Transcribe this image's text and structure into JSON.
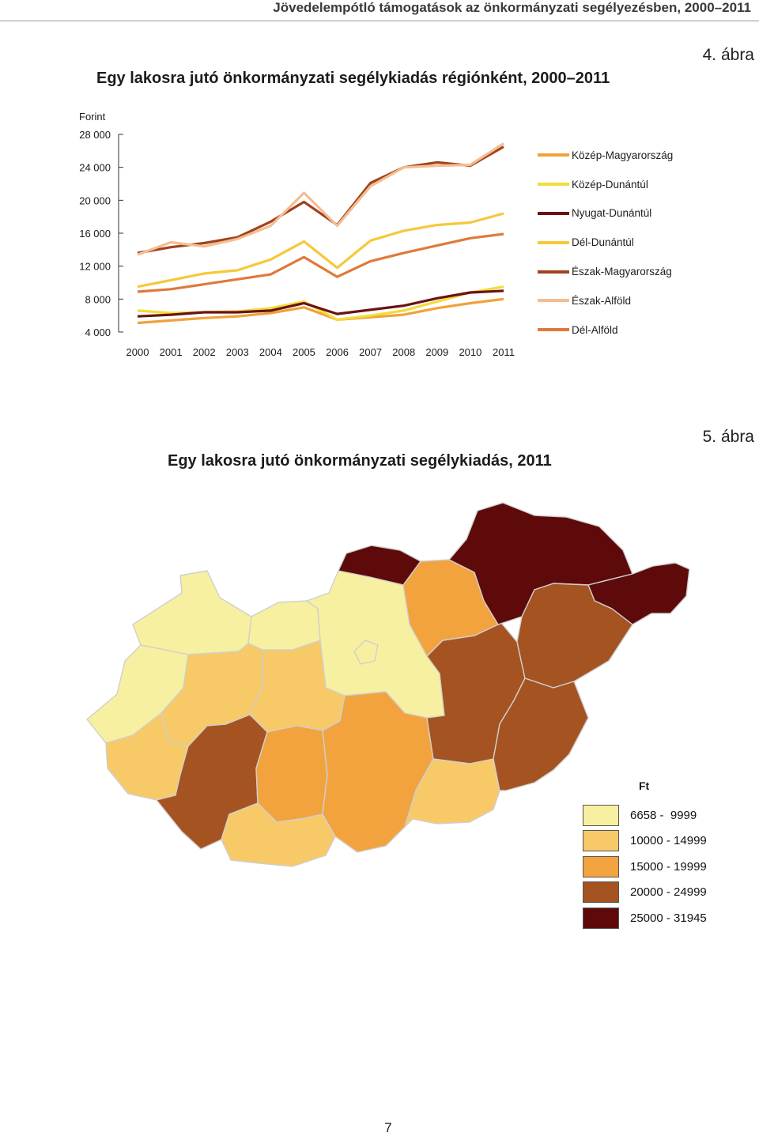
{
  "running_header": "Jövedelempótló támogatások az önkormányzati segélyezésben, 2000–2011",
  "figure4": {
    "number": "4. ábra",
    "title": "Egy lakosra jutó önkormányzati segélykiadás régiónként, 2000–2011"
  },
  "figure5": {
    "number": "5. ábra",
    "title": "Egy lakosra jutó önkormányzati segélykiadás, 2011"
  },
  "chart_data": {
    "type": "line",
    "title": "Egy lakosra jutó önkormányzati segélykiadás régiónként, 2000–2011",
    "ylabel": "Forint",
    "xlabel": "",
    "x": [
      "2000",
      "2001",
      "2002",
      "2003",
      "2004",
      "2005",
      "2006",
      "2007",
      "2008",
      "2009",
      "2010",
      "2011"
    ],
    "y_ticks": [
      4000,
      8000,
      12000,
      16000,
      20000,
      24000,
      28000
    ],
    "y_tick_labels": [
      "4 000",
      "8 000",
      "12 000",
      "16 000",
      "20 000",
      "24 000",
      "28 000"
    ],
    "ylim": [
      4000,
      28000
    ],
    "grid": false,
    "legend_position": "right",
    "series": [
      {
        "name": "Közép-Magyarország",
        "color": "#f0a23a",
        "values": [
          5100,
          5400,
          5700,
          5900,
          6300,
          7000,
          5500,
          5800,
          6100,
          6900,
          7500,
          8000
        ]
      },
      {
        "name": "Közép-Dunántúl",
        "color": "#f2dc3a",
        "values": [
          6600,
          6300,
          6400,
          6500,
          6900,
          7700,
          5500,
          6000,
          6600,
          7700,
          8800,
          9500
        ]
      },
      {
        "name": "Nyugat-Dunántúl",
        "color": "#6b1212",
        "values": [
          5900,
          6100,
          6400,
          6400,
          6600,
          7500,
          6200,
          6700,
          7200,
          8100,
          8800,
          9000
        ]
      },
      {
        "name": "Dél-Dunántúl",
        "color": "#f6c83a",
        "values": [
          9500,
          10300,
          11100,
          11500,
          12800,
          15000,
          11800,
          15100,
          16300,
          17000,
          17300,
          18400
        ]
      },
      {
        "name": "Észak-Magyarország",
        "color": "#a1421c",
        "values": [
          13600,
          14300,
          14800,
          15500,
          17400,
          19800,
          17000,
          22100,
          24000,
          24600,
          24200,
          26500
        ]
      },
      {
        "name": "Észak-Alföld",
        "color": "#f4bd92",
        "values": [
          13400,
          14900,
          14400,
          15300,
          16900,
          20900,
          16900,
          21700,
          24000,
          24200,
          24300,
          26900
        ]
      },
      {
        "name": "Dél-Alföld",
        "color": "#e0793a",
        "values": [
          8900,
          9200,
          9800,
          10400,
          11000,
          13100,
          10700,
          12600,
          13600,
          14500,
          15400,
          15900
        ]
      }
    ]
  },
  "map": {
    "legend_unit": "Ft",
    "legend": [
      {
        "label": "6658 -  9999",
        "color": "#f7f0a0"
      },
      {
        "label": "10000 - 14999",
        "color": "#f8c967"
      },
      {
        "label": "15000 - 19999",
        "color": "#f2a33e"
      },
      {
        "label": "20000 - 24999",
        "color": "#a55321"
      },
      {
        "label": "25000 - 31945",
        "color": "#5e0a0a"
      }
    ]
  },
  "page_number": "7"
}
